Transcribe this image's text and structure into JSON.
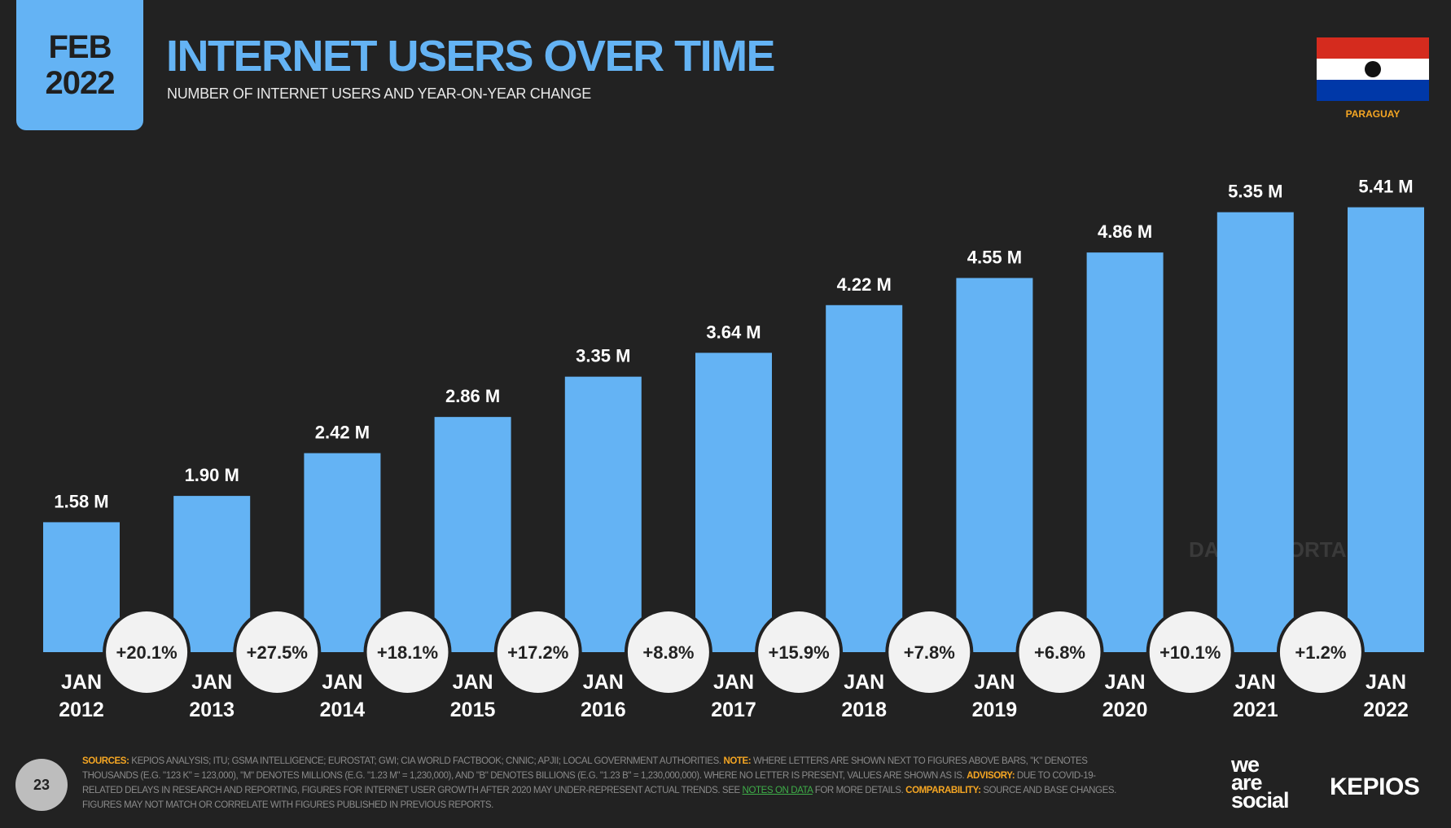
{
  "header": {
    "date_month": "FEB",
    "date_year": "2022",
    "title": "INTERNET USERS OVER TIME",
    "subtitle": "NUMBER OF INTERNET USERS AND YEAR-ON-YEAR CHANGE",
    "country": "PARAGUAY",
    "flag_colors": [
      "#d52b1e",
      "#ffffff",
      "#0038a8"
    ]
  },
  "colors": {
    "background": "#222222",
    "bar": "#64b3f4",
    "accent": "#f5a623",
    "circle": "#f2f2f2"
  },
  "chart_data": {
    "type": "bar",
    "categories": [
      [
        "JAN",
        "2012"
      ],
      [
        "JAN",
        "2013"
      ],
      [
        "JAN",
        "2014"
      ],
      [
        "JAN",
        "2015"
      ],
      [
        "JAN",
        "2016"
      ],
      [
        "JAN",
        "2017"
      ],
      [
        "JAN",
        "2018"
      ],
      [
        "JAN",
        "2019"
      ],
      [
        "JAN",
        "2020"
      ],
      [
        "JAN",
        "2021"
      ],
      [
        "JAN",
        "2022"
      ]
    ],
    "values": [
      1.58,
      1.9,
      2.42,
      2.86,
      3.35,
      3.64,
      4.22,
      4.55,
      4.86,
      5.35,
      5.41
    ],
    "value_labels": [
      "1.58 M",
      "1.90 M",
      "2.42 M",
      "2.86 M",
      "3.35 M",
      "3.64 M",
      "4.22 M",
      "4.55 M",
      "4.86 M",
      "5.35 M",
      "5.41 M"
    ],
    "yoy_changes": [
      "+20.1%",
      "+27.5%",
      "+18.1%",
      "+17.2%",
      "+8.8%",
      "+15.9%",
      "+7.8%",
      "+6.8%",
      "+10.1%",
      "+1.2%"
    ],
    "unit": "M",
    "grid": false,
    "legend": "none"
  },
  "watermark": "DATAREPORTAL",
  "footer": {
    "page_number": "23",
    "sources_label": "SOURCES:",
    "sources_text": " KEPIOS ANALYSIS; ITU; GSMA INTELLIGENCE; EUROSTAT; GWI; CIA WORLD FACTBOOK; CNNIC; APJII; LOCAL GOVERNMENT AUTHORITIES. ",
    "note_label": "NOTE:",
    "note_text": " WHERE LETTERS ARE SHOWN NEXT TO FIGURES ABOVE BARS, \"K\" DENOTES THOUSANDS (E.G. \"123 K\" = 123,000), \"M\" DENOTES MILLIONS (E.G. \"1.23 M\" = 1,230,000), AND \"B\" DENOTES BILLIONS (E.G. \"1.23 B\" = 1,230,000,000). WHERE NO LETTER IS PRESENT, VALUES ARE SHOWN AS IS. ",
    "advisory_label": "ADVISORY:",
    "advisory_text": " DUE TO COVID-19-RELATED DELAYS IN RESEARCH AND REPORTING, FIGURES FOR INTERNET USER GROWTH AFTER 2020 MAY UNDER-REPRESENT ACTUAL TRENDS. SEE ",
    "notes_link": "NOTES ON DATA",
    "after_link": " FOR MORE DETAILS. ",
    "comparability_label": "COMPARABILITY:",
    "comparability_text": " SOURCE AND BASE CHANGES. FIGURES MAY NOT MATCH OR CORRELATE WITH FIGURES PUBLISHED IN PREVIOUS REPORTS.",
    "logo_was": "we are social",
    "logo_kepios": "KEPIOS"
  }
}
